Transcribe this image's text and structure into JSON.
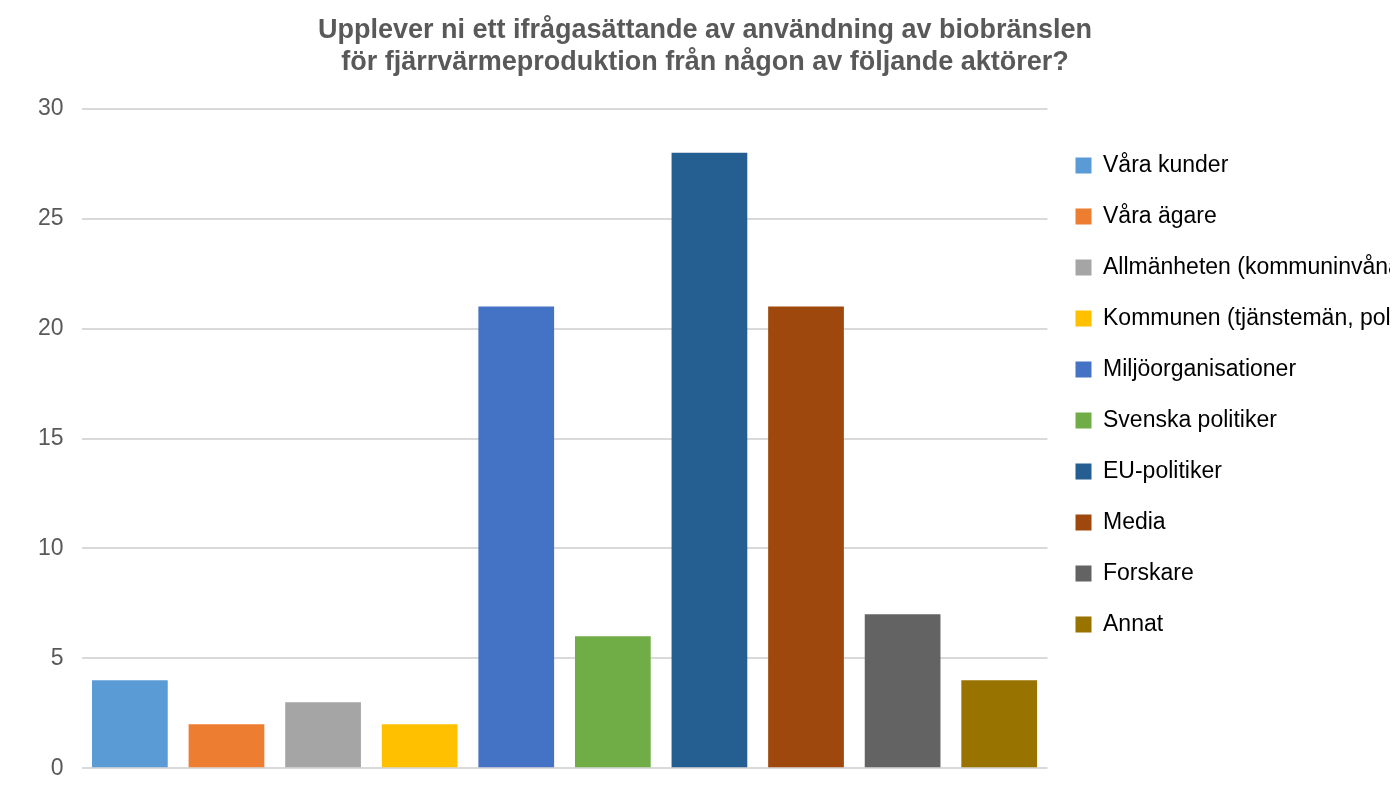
{
  "chart_data": {
    "type": "bar",
    "title": "Upplever ni ett ifrågasättande av användning av biobränslen för fjärrvärmeproduktion från någon av följande aktörer?",
    "categories": [
      "Våra kunder",
      "Våra ägare",
      "Allmänheten (kommuninvånare)",
      "Kommunen (tjänstemän, politiker)",
      "Miljöorganisationer",
      "Svenska politiker",
      "EU-politiker",
      "Media",
      "Forskare",
      "Annat"
    ],
    "values": [
      4,
      2,
      3,
      2,
      21,
      6,
      28,
      21,
      7,
      4
    ],
    "colors": [
      "#5b9bd5",
      "#ed7d31",
      "#a5a5a5",
      "#ffc000",
      "#4472c4",
      "#70ad47",
      "#255e91",
      "#9e480e",
      "#636363",
      "#997300"
    ],
    "ylim": [
      0,
      30
    ],
    "yticks": [
      0,
      5,
      10,
      15,
      20,
      25,
      30
    ],
    "grid": true,
    "legend": "right",
    "tick_labels": "y"
  }
}
